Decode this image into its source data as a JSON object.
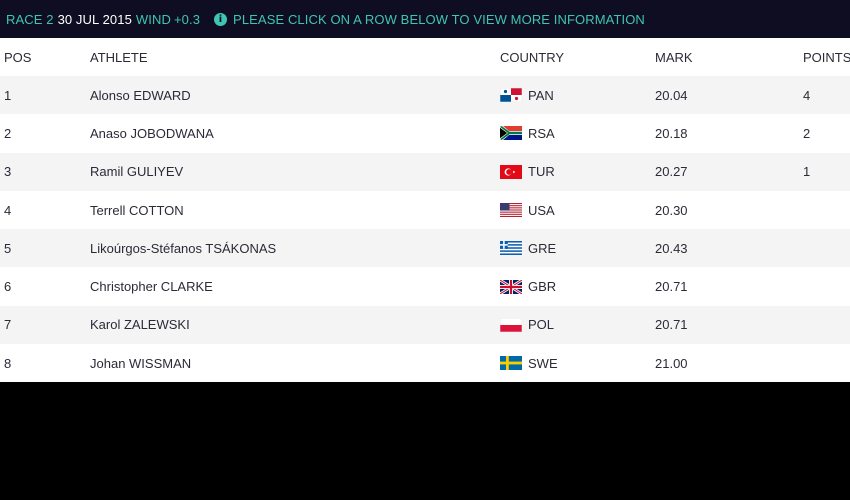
{
  "header": {
    "race": "RACE 2",
    "date": "30 JUL 2015",
    "wind_label": "WIND",
    "wind_value": "+0.3",
    "info_icon": "info-icon",
    "info_text": "PLEASE CLICK ON A ROW BELOW TO VIEW MORE INFORMATION"
  },
  "columns": {
    "pos": "POS",
    "athlete": "ATHLETE",
    "country": "COUNTRY",
    "mark": "MARK",
    "points": "POINTS"
  },
  "rows": [
    {
      "pos": "1",
      "athlete": "Alonso EDWARD",
      "country": "PAN",
      "flag": "pan-flag-icon",
      "mark": "20.04",
      "points": "4"
    },
    {
      "pos": "2",
      "athlete": "Anaso JOBODWANA",
      "country": "RSA",
      "flag": "rsa-flag-icon",
      "mark": "20.18",
      "points": "2"
    },
    {
      "pos": "3",
      "athlete": "Ramil GULIYEV",
      "country": "TUR",
      "flag": "tur-flag-icon",
      "mark": "20.27",
      "points": "1"
    },
    {
      "pos": "4",
      "athlete": "Terrell COTTON",
      "country": "USA",
      "flag": "usa-flag-icon",
      "mark": "20.30",
      "points": ""
    },
    {
      "pos": "5",
      "athlete": "Likoúrgos-Stéfanos TSÁKONAS",
      "country": "GRE",
      "flag": "gre-flag-icon",
      "mark": "20.43",
      "points": ""
    },
    {
      "pos": "6",
      "athlete": "Christopher CLARKE",
      "country": "GBR",
      "flag": "gbr-flag-icon",
      "mark": "20.71",
      "points": ""
    },
    {
      "pos": "7",
      "athlete": "Karol ZALEWSKI",
      "country": "POL",
      "flag": "pol-flag-icon",
      "mark": "20.71",
      "points": ""
    },
    {
      "pos": "8",
      "athlete": "Johan WISSMAN",
      "country": "SWE",
      "flag": "swe-flag-icon",
      "mark": "21.00",
      "points": ""
    }
  ],
  "colors": {
    "header_bg": "#0f0d22",
    "accent": "#3ec6b2",
    "row_alt": "#f4f4f5",
    "text": "#2a2b36"
  }
}
